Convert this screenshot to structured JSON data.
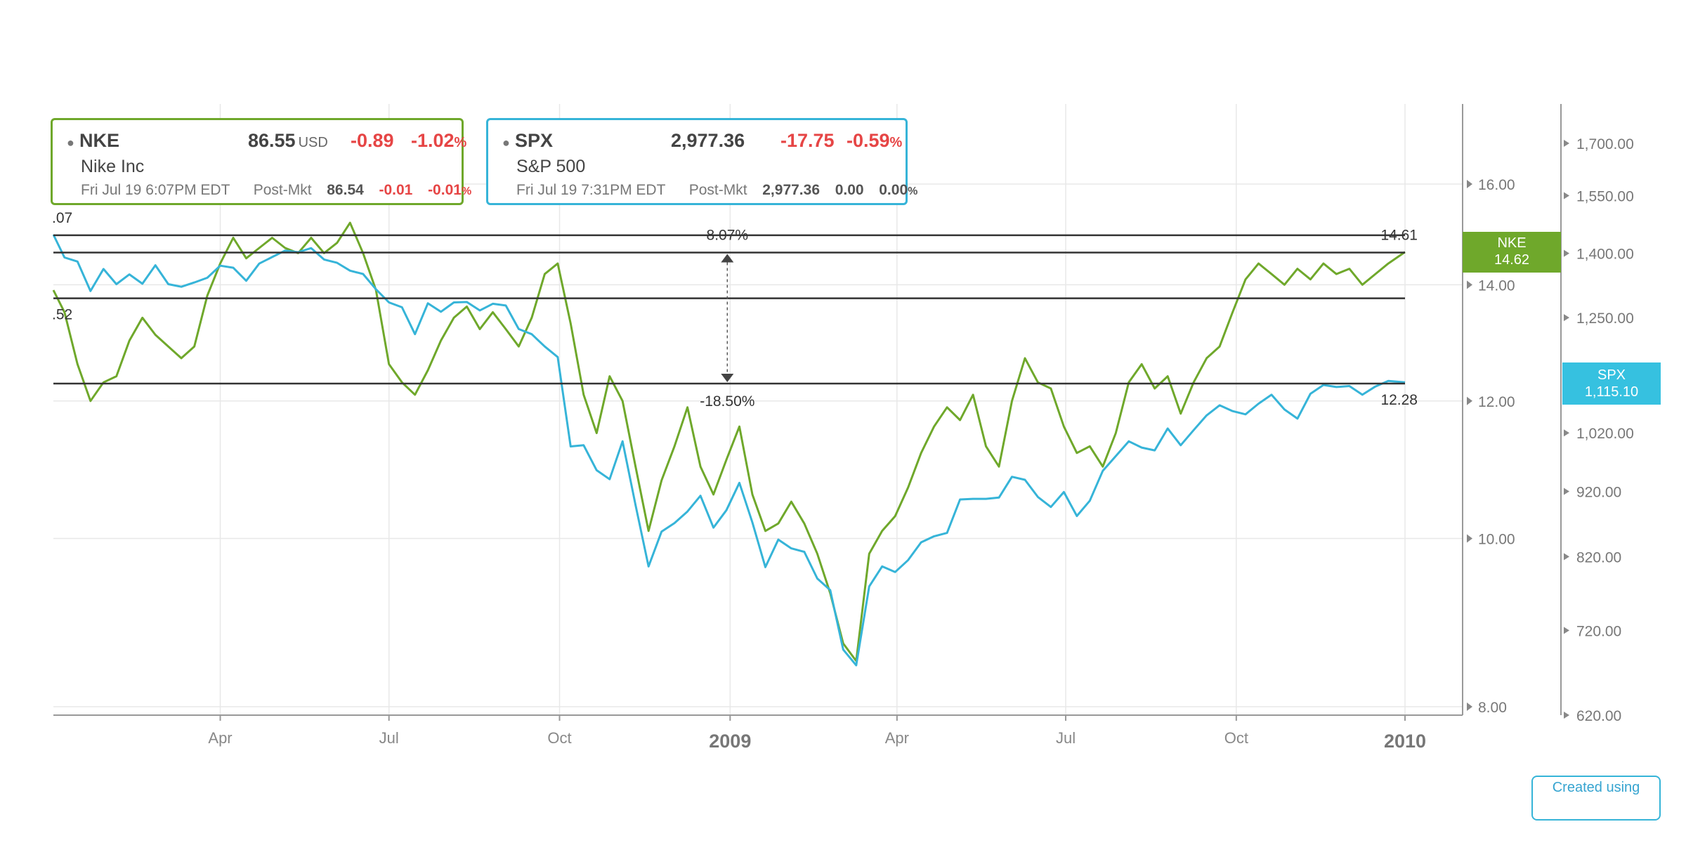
{
  "colors": {
    "nke": "#6fa82b",
    "spx": "#36b4d8",
    "negative": "#e64545",
    "level_line": "#333333",
    "grid": "#e8e8e8",
    "axis": "#999999"
  },
  "cards": [
    {
      "symbol": "NKE",
      "price": "86.55",
      "unit": "USD",
      "change": "-0.89",
      "change_pct": "-1.02",
      "pct_sign": "%",
      "name": "Nike Inc",
      "time": "Fri Jul 19 6:07PM EDT",
      "post_label": "Post-Mkt",
      "post_price": "86.54",
      "post_change": "-0.01",
      "post_pct": "-0.01",
      "post_pct_sign": "%"
    },
    {
      "symbol": "SPX",
      "price": "2,977.36",
      "unit": "",
      "change": "-17.75",
      "change_pct": "-0.59",
      "pct_sign": "%",
      "name": "S&P 500",
      "time": "Fri Jul 19 7:31PM EDT",
      "post_label": "Post-Mkt",
      "post_price": "2,977.36",
      "post_change": "0.00",
      "post_pct": "0.00",
      "post_pct_sign": "%"
    }
  ],
  "tags": {
    "nke": {
      "symbol": "NKE",
      "value": "14.62"
    },
    "spx": {
      "symbol": "SPX",
      "value": "1,115.10"
    }
  },
  "credit": "Created using",
  "chart_data": {
    "type": "line",
    "x_start": "2008-01-02",
    "x_end": "2009-12-31",
    "x_ticks": [
      {
        "date": "2008-04-01",
        "label": "Apr",
        "major": false
      },
      {
        "date": "2008-07-01",
        "label": "Jul",
        "major": false
      },
      {
        "date": "2008-10-01",
        "label": "Oct",
        "major": false
      },
      {
        "date": "2009-01-01",
        "label": "2009",
        "major": true
      },
      {
        "date": "2009-04-01",
        "label": "Apr",
        "major": false
      },
      {
        "date": "2009-07-01",
        "label": "Jul",
        "major": false
      },
      {
        "date": "2009-10-01",
        "label": "Oct",
        "major": false
      },
      {
        "date": "2009-12-31",
        "label": "2010",
        "major": true
      }
    ],
    "y_left": {
      "scale": "log",
      "ticks": [
        8,
        10,
        12,
        14,
        16
      ],
      "tick_labels": [
        "8.00",
        "10.00",
        "12.00",
        "14.00",
        "16.00"
      ],
      "range": [
        7.9,
        17.9
      ]
    },
    "y_right": {
      "scale": "log",
      "ticks": [
        620,
        720,
        820,
        920,
        1020,
        1250,
        1400,
        1550,
        1700
      ],
      "tick_labels": [
        "620.00",
        "720.00",
        "820.00",
        "920.00",
        "1,020.00",
        "1,250.00",
        "1,400.00",
        "1,550.00",
        "1,700.00"
      ],
      "range": [
        614,
        1830
      ]
    },
    "levels": [
      {
        "value": 14.95,
        "label": "",
        "edge_label": ".07"
      },
      {
        "value": 14.61,
        "label": "14.61",
        "edge_label": ""
      },
      {
        "value": 13.75,
        "label": "",
        "edge_label": ".52"
      },
      {
        "value": 12.28,
        "label": "12.28",
        "edge_label": ""
      }
    ],
    "measure": {
      "date": "2009-01-01",
      "from": 12.28,
      "to": 14.61,
      "up_label": "8.07%",
      "down_label": "-18.50%"
    },
    "series": [
      {
        "name": "NKE",
        "axis": "left",
        "points": [
          [
            "2008-01-02",
            13.9
          ],
          [
            "2008-01-08",
            13.5
          ],
          [
            "2008-01-15",
            12.6
          ],
          [
            "2008-01-22",
            12.0
          ],
          [
            "2008-01-29",
            12.3
          ],
          [
            "2008-02-05",
            12.4
          ],
          [
            "2008-02-12",
            13.0
          ],
          [
            "2008-02-19",
            13.4
          ],
          [
            "2008-02-26",
            13.1
          ],
          [
            "2008-03-04",
            12.9
          ],
          [
            "2008-03-11",
            12.7
          ],
          [
            "2008-03-18",
            12.9
          ],
          [
            "2008-03-25",
            13.8
          ],
          [
            "2008-04-01",
            14.4
          ],
          [
            "2008-04-08",
            14.9
          ],
          [
            "2008-04-15",
            14.5
          ],
          [
            "2008-04-22",
            14.7
          ],
          [
            "2008-04-29",
            14.9
          ],
          [
            "2008-05-06",
            14.7
          ],
          [
            "2008-05-13",
            14.6
          ],
          [
            "2008-05-20",
            14.9
          ],
          [
            "2008-05-27",
            14.6
          ],
          [
            "2008-06-03",
            14.8
          ],
          [
            "2008-06-10",
            15.2
          ],
          [
            "2008-06-17",
            14.6
          ],
          [
            "2008-06-24",
            13.9
          ],
          [
            "2008-07-01",
            12.6
          ],
          [
            "2008-07-08",
            12.3
          ],
          [
            "2008-07-15",
            12.1
          ],
          [
            "2008-07-22",
            12.5
          ],
          [
            "2008-07-29",
            13.0
          ],
          [
            "2008-08-05",
            13.4
          ],
          [
            "2008-08-12",
            13.6
          ],
          [
            "2008-08-19",
            13.2
          ],
          [
            "2008-08-26",
            13.5
          ],
          [
            "2008-09-02",
            13.2
          ],
          [
            "2008-09-09",
            12.9
          ],
          [
            "2008-09-16",
            13.4
          ],
          [
            "2008-09-23",
            14.2
          ],
          [
            "2008-09-30",
            14.4
          ],
          [
            "2008-10-07",
            13.3
          ],
          [
            "2008-10-14",
            12.1
          ],
          [
            "2008-10-21",
            11.5
          ],
          [
            "2008-10-28",
            12.4
          ],
          [
            "2008-11-04",
            12.0
          ],
          [
            "2008-11-11",
            11.0
          ],
          [
            "2008-11-18",
            10.1
          ],
          [
            "2008-11-25",
            10.8
          ],
          [
            "2008-12-02",
            11.3
          ],
          [
            "2008-12-09",
            11.9
          ],
          [
            "2008-12-16",
            11.0
          ],
          [
            "2008-12-23",
            10.6
          ],
          [
            "2008-12-30",
            11.1
          ],
          [
            "2009-01-06",
            11.6
          ],
          [
            "2009-01-13",
            10.6
          ],
          [
            "2009-01-20",
            10.1
          ],
          [
            "2009-01-27",
            10.2
          ],
          [
            "2009-02-03",
            10.5
          ],
          [
            "2009-02-10",
            10.2
          ],
          [
            "2009-02-17",
            9.8
          ],
          [
            "2009-02-24",
            9.3
          ],
          [
            "2009-03-03",
            8.7
          ],
          [
            "2009-03-10",
            8.5
          ],
          [
            "2009-03-17",
            9.8
          ],
          [
            "2009-03-24",
            10.1
          ],
          [
            "2009-03-31",
            10.3
          ],
          [
            "2009-04-07",
            10.7
          ],
          [
            "2009-04-14",
            11.2
          ],
          [
            "2009-04-21",
            11.6
          ],
          [
            "2009-04-28",
            11.9
          ],
          [
            "2009-05-05",
            11.7
          ],
          [
            "2009-05-12",
            12.1
          ],
          [
            "2009-05-19",
            11.3
          ],
          [
            "2009-05-26",
            11.0
          ],
          [
            "2009-06-02",
            12.0
          ],
          [
            "2009-06-09",
            12.7
          ],
          [
            "2009-06-16",
            12.3
          ],
          [
            "2009-06-23",
            12.2
          ],
          [
            "2009-06-30",
            11.6
          ],
          [
            "2009-07-07",
            11.2
          ],
          [
            "2009-07-14",
            11.3
          ],
          [
            "2009-07-21",
            11.0
          ],
          [
            "2009-07-28",
            11.5
          ],
          [
            "2009-08-04",
            12.3
          ],
          [
            "2009-08-11",
            12.6
          ],
          [
            "2009-08-18",
            12.2
          ],
          [
            "2009-08-25",
            12.4
          ],
          [
            "2009-09-01",
            11.8
          ],
          [
            "2009-09-08",
            12.3
          ],
          [
            "2009-09-15",
            12.7
          ],
          [
            "2009-09-22",
            12.9
          ],
          [
            "2009-09-29",
            13.5
          ],
          [
            "2009-10-06",
            14.1
          ],
          [
            "2009-10-13",
            14.4
          ],
          [
            "2009-10-20",
            14.2
          ],
          [
            "2009-10-27",
            14.0
          ],
          [
            "2009-11-03",
            14.3
          ],
          [
            "2009-11-10",
            14.1
          ],
          [
            "2009-11-17",
            14.4
          ],
          [
            "2009-11-24",
            14.2
          ],
          [
            "2009-12-01",
            14.3
          ],
          [
            "2009-12-08",
            14.0
          ],
          [
            "2009-12-15",
            14.2
          ],
          [
            "2009-12-22",
            14.4
          ],
          [
            "2009-12-31",
            14.62
          ]
        ]
      },
      {
        "name": "SPX",
        "axis": "right",
        "points": [
          [
            "2008-01-02",
            1447
          ],
          [
            "2008-01-08",
            1390
          ],
          [
            "2008-01-15",
            1380
          ],
          [
            "2008-01-22",
            1310
          ],
          [
            "2008-01-29",
            1362
          ],
          [
            "2008-02-05",
            1326
          ],
          [
            "2008-02-12",
            1349
          ],
          [
            "2008-02-19",
            1327
          ],
          [
            "2008-02-26",
            1371
          ],
          [
            "2008-03-04",
            1326
          ],
          [
            "2008-03-11",
            1320
          ],
          [
            "2008-03-18",
            1330
          ],
          [
            "2008-03-25",
            1341
          ],
          [
            "2008-04-01",
            1370
          ],
          [
            "2008-04-08",
            1365
          ],
          [
            "2008-04-15",
            1334
          ],
          [
            "2008-04-22",
            1375
          ],
          [
            "2008-04-29",
            1391
          ],
          [
            "2008-05-06",
            1407
          ],
          [
            "2008-05-13",
            1403
          ],
          [
            "2008-05-20",
            1413
          ],
          [
            "2008-05-27",
            1385
          ],
          [
            "2008-06-03",
            1377
          ],
          [
            "2008-06-10",
            1358
          ],
          [
            "2008-06-17",
            1350
          ],
          [
            "2008-06-24",
            1314
          ],
          [
            "2008-07-01",
            1284
          ],
          [
            "2008-07-08",
            1273
          ],
          [
            "2008-07-15",
            1214
          ],
          [
            "2008-07-22",
            1282
          ],
          [
            "2008-07-29",
            1263
          ],
          [
            "2008-08-05",
            1284
          ],
          [
            "2008-08-12",
            1285
          ],
          [
            "2008-08-19",
            1266
          ],
          [
            "2008-08-26",
            1281
          ],
          [
            "2008-09-02",
            1277
          ],
          [
            "2008-09-09",
            1225
          ],
          [
            "2008-09-16",
            1214
          ],
          [
            "2008-09-23",
            1188
          ],
          [
            "2008-09-30",
            1166
          ],
          [
            "2008-10-07",
            996
          ],
          [
            "2008-10-14",
            998
          ],
          [
            "2008-10-21",
            955
          ],
          [
            "2008-10-28",
            940
          ],
          [
            "2008-11-04",
            1005
          ],
          [
            "2008-11-11",
            898
          ],
          [
            "2008-11-18",
            806
          ],
          [
            "2008-11-25",
            857
          ],
          [
            "2008-12-02",
            870
          ],
          [
            "2008-12-09",
            888
          ],
          [
            "2008-12-16",
            913
          ],
          [
            "2008-12-23",
            863
          ],
          [
            "2008-12-30",
            890
          ],
          [
            "2009-01-06",
            934
          ],
          [
            "2009-01-13",
            871
          ],
          [
            "2009-01-20",
            805
          ],
          [
            "2009-01-27",
            845
          ],
          [
            "2009-02-03",
            832
          ],
          [
            "2009-02-10",
            827
          ],
          [
            "2009-02-17",
            789
          ],
          [
            "2009-02-24",
            773
          ],
          [
            "2009-03-03",
            696
          ],
          [
            "2009-03-10",
            677
          ],
          [
            "2009-03-17",
            778
          ],
          [
            "2009-03-24",
            806
          ],
          [
            "2009-03-31",
            798
          ],
          [
            "2009-04-07",
            815
          ],
          [
            "2009-04-14",
            841
          ],
          [
            "2009-04-21",
            850
          ],
          [
            "2009-04-28",
            855
          ],
          [
            "2009-05-05",
            907
          ],
          [
            "2009-05-12",
            908
          ],
          [
            "2009-05-19",
            908
          ],
          [
            "2009-05-26",
            910
          ],
          [
            "2009-06-02",
            944
          ],
          [
            "2009-06-09",
            939
          ],
          [
            "2009-06-16",
            911
          ],
          [
            "2009-06-23",
            895
          ],
          [
            "2009-06-30",
            919
          ],
          [
            "2009-07-07",
            881
          ],
          [
            "2009-07-14",
            905
          ],
          [
            "2009-07-21",
            954
          ],
          [
            "2009-07-28",
            979
          ],
          [
            "2009-08-04",
            1005
          ],
          [
            "2009-08-11",
            994
          ],
          [
            "2009-08-18",
            989
          ],
          [
            "2009-08-25",
            1028
          ],
          [
            "2009-09-01",
            998
          ],
          [
            "2009-09-08",
            1025
          ],
          [
            "2009-09-15",
            1052
          ],
          [
            "2009-09-22",
            1071
          ],
          [
            "2009-09-29",
            1060
          ],
          [
            "2009-10-06",
            1054
          ],
          [
            "2009-10-13",
            1074
          ],
          [
            "2009-10-20",
            1091
          ],
          [
            "2009-10-27",
            1063
          ],
          [
            "2009-11-03",
            1046
          ],
          [
            "2009-11-10",
            1093
          ],
          [
            "2009-11-17",
            1110
          ],
          [
            "2009-11-24",
            1106
          ],
          [
            "2009-12-01",
            1108
          ],
          [
            "2009-12-08",
            1091
          ],
          [
            "2009-12-15",
            1107
          ],
          [
            "2009-12-22",
            1118
          ],
          [
            "2009-12-31",
            1115.1
          ]
        ]
      }
    ]
  }
}
